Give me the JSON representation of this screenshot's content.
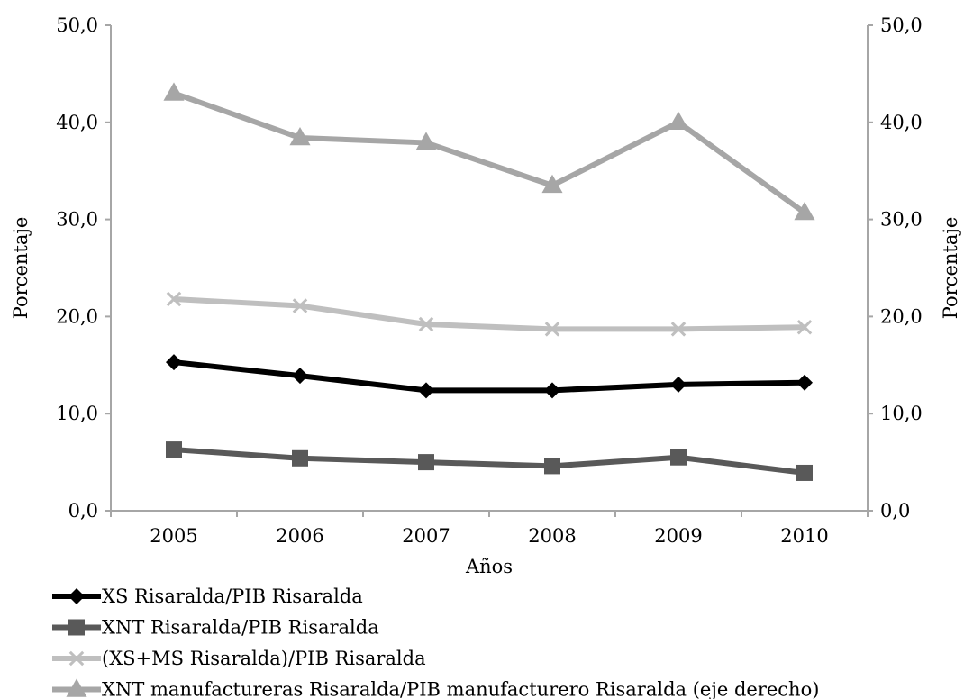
{
  "chart_data": {
    "type": "line",
    "title": "",
    "xlabel": "Años",
    "ylabel": "Porcentaje",
    "y2label": "Porcentaje",
    "categories": [
      "2005",
      "2006",
      "2007",
      "2008",
      "2009",
      "2010"
    ],
    "ylim": [
      0,
      50
    ],
    "y2lim": [
      0,
      50
    ],
    "yticks": [
      "0,0",
      "10,0",
      "20,0",
      "30,0",
      "40,0",
      "50,0"
    ],
    "y2ticks": [
      "0,0",
      "10,0",
      "20,0",
      "30,0",
      "40,0",
      "50,0"
    ],
    "grid": false,
    "legend_position": "bottom",
    "series": [
      {
        "name": "XS Risaralda/PIB Risaralda",
        "values": [
          15.3,
          13.9,
          12.4,
          12.4,
          13.0,
          13.2
        ],
        "color": "#000000",
        "marker": "diamond",
        "axis": "left"
      },
      {
        "name": "XNT Risaralda/PIB Risaralda",
        "values": [
          6.3,
          5.4,
          5.0,
          4.6,
          5.5,
          3.9
        ],
        "color": "#595959",
        "marker": "square",
        "axis": "left"
      },
      {
        "name": "(XS+MS Risaralda)/PIB Risaralda",
        "values": [
          21.8,
          21.1,
          19.2,
          18.7,
          18.7,
          18.9
        ],
        "color": "#bfbfbf",
        "marker": "x",
        "axis": "left"
      },
      {
        "name": "XNT manufactureras Risaralda/PIB manufacturero Risaralda (eje derecho)",
        "values": [
          43.0,
          38.4,
          37.9,
          33.5,
          40.0,
          30.7
        ],
        "color": "#a6a6a6",
        "marker": "triangle",
        "axis": "right"
      }
    ]
  }
}
